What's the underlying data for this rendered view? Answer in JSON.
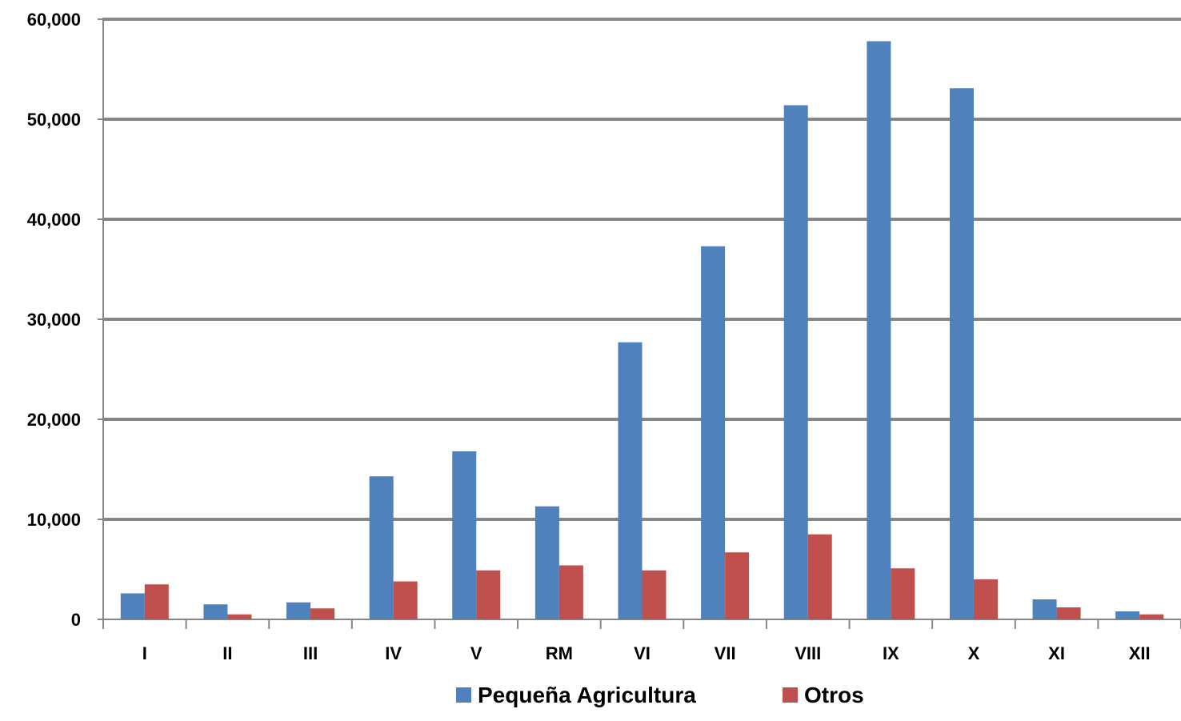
{
  "chart_data": {
    "type": "bar",
    "title": "",
    "xlabel": "",
    "ylabel": "",
    "categories": [
      "I",
      "II",
      "III",
      "IV",
      "V",
      "RM",
      "VI",
      "VII",
      "VIII",
      "IX",
      "X",
      "XI",
      "XII"
    ],
    "series": [
      {
        "name": "Pequeña Agricultura",
        "color": "#4F81BD",
        "values": [
          2600,
          1500,
          1700,
          14300,
          16800,
          11300,
          27700,
          37300,
          51400,
          57800,
          53100,
          2000,
          800
        ]
      },
      {
        "name": "Otros",
        "color": "#C0504D",
        "values": [
          3500,
          500,
          1100,
          3800,
          4900,
          5400,
          4900,
          6700,
          8500,
          5100,
          4000,
          1200,
          500
        ]
      }
    ],
    "ylim": [
      0,
      60000
    ],
    "yticks": [
      "0",
      "10,000",
      "20,000",
      "30,000",
      "40,000",
      "50,000",
      "60,000"
    ],
    "ytick_values": [
      0,
      10000,
      20000,
      30000,
      40000,
      50000,
      60000
    ],
    "grid": true,
    "legend_position": "bottom"
  }
}
